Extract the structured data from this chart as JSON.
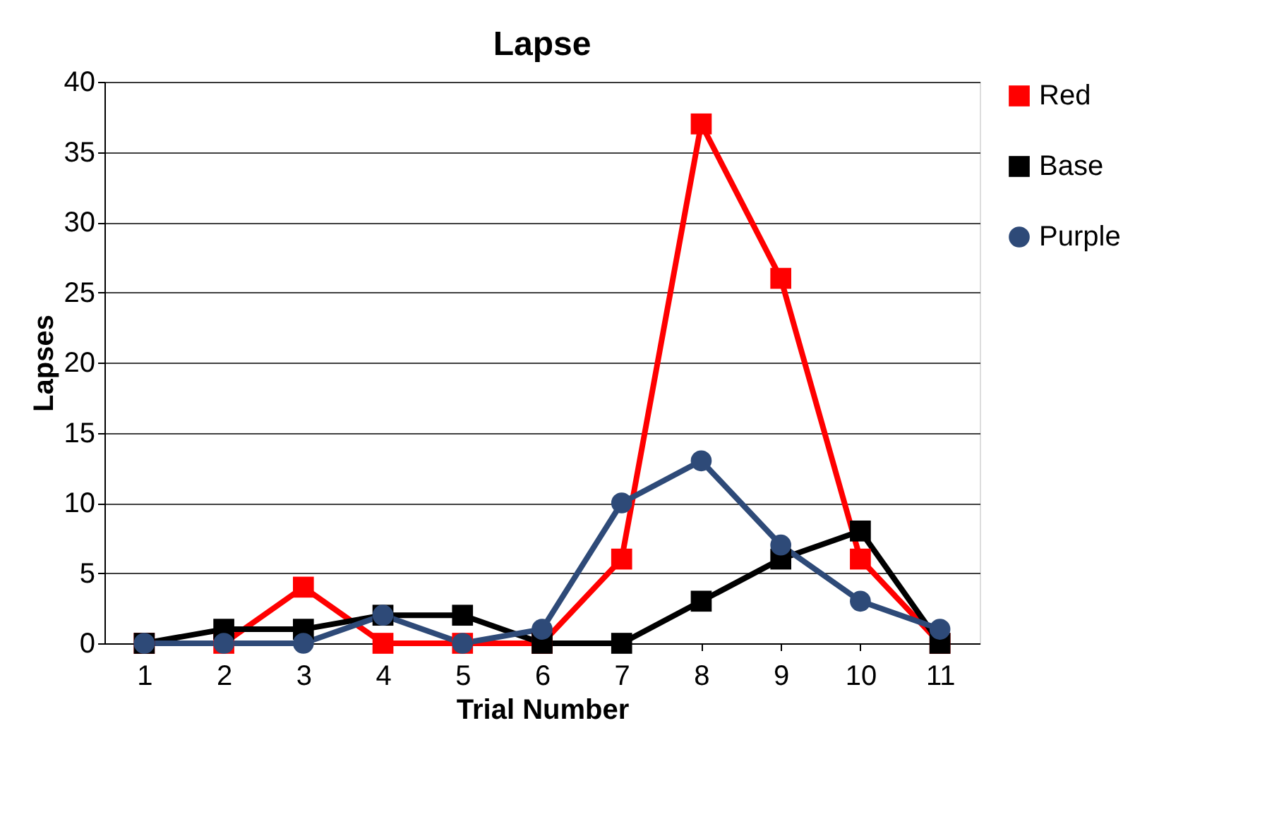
{
  "chart_data": {
    "type": "line",
    "title": "Lapse",
    "xlabel": "Trial Number",
    "ylabel": "Lapses",
    "categories": [
      "1",
      "2",
      "3",
      "4",
      "5",
      "6",
      "7",
      "8",
      "9",
      "10",
      "11"
    ],
    "series": [
      {
        "name": "Red",
        "color": "#ff0000",
        "marker": "square",
        "values": [
          0,
          0,
          4,
          0,
          0,
          0,
          6,
          37,
          26,
          6,
          0
        ]
      },
      {
        "name": "Base",
        "color": "#000000",
        "marker": "square",
        "values": [
          0,
          1,
          1,
          2,
          2,
          0,
          0,
          3,
          6,
          8,
          0
        ]
      },
      {
        "name": "Purple",
        "color": "#2e4a78",
        "marker": "circle",
        "values": [
          0,
          0,
          0,
          2,
          0,
          1,
          10,
          13,
          7,
          3,
          1
        ]
      }
    ],
    "ylim": [
      0,
      40
    ],
    "yticks": [
      0,
      5,
      10,
      15,
      20,
      25,
      30,
      35,
      40
    ],
    "grid": "y",
    "legend": "right",
    "line_style": "solid"
  }
}
